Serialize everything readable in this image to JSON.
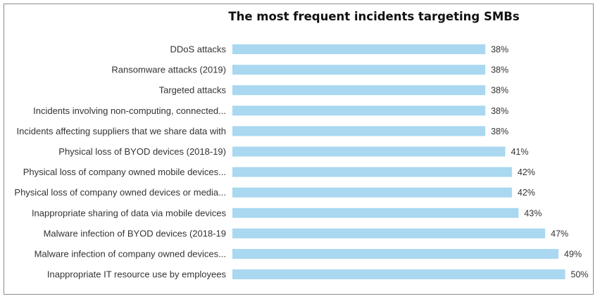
{
  "chart_data": {
    "type": "bar",
    "orientation": "horizontal",
    "title": "The most frequent incidents targeting SMBs",
    "categories": [
      "DDoS attacks",
      "Ransomware attacks (2019)",
      "Targeted attacks",
      "Incidents involving non-computing, connected...",
      "Incidents affecting suppliers that we share data with",
      "Physical loss of BYOD devices (2018-19)",
      "Physical loss of company owned mobile devices...",
      "Physical loss of company owned devices or media...",
      "Inappropriate sharing of data via mobile devices",
      "Malware infection of BYOD devices (2018-19",
      "Malware infection of company owned devices...",
      "Inappropriate IT resource use by employees"
    ],
    "values": [
      38,
      38,
      38,
      38,
      38,
      41,
      42,
      42,
      43,
      47,
      49,
      50
    ],
    "value_labels": [
      "38%",
      "38%",
      "38%",
      "38%",
      "38%",
      "41%",
      "42%",
      "42%",
      "43%",
      "47%",
      "49%",
      "50%"
    ],
    "unit": "%",
    "xlim": [
      0,
      50
    ],
    "bar_color": "#a9d8f0",
    "grid": false,
    "xlabel": "",
    "ylabel": ""
  }
}
